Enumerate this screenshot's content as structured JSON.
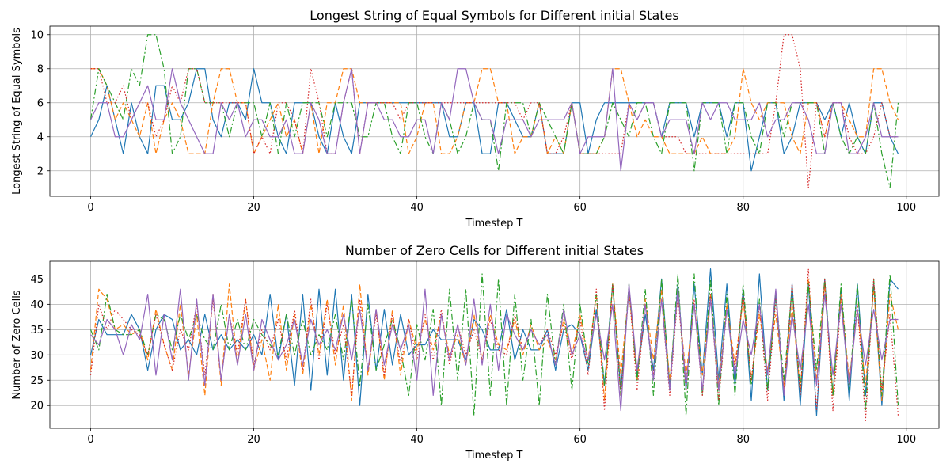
{
  "chart_data": [
    {
      "type": "line",
      "title": "Longest String of Equal Symbols for Different initial States",
      "xlabel": "Timestep T",
      "ylabel": "Longest String of Equal Symbols",
      "xlim": [
        -5,
        104
      ],
      "ylim": [
        0.5,
        10.5
      ],
      "xticks": [
        0,
        20,
        40,
        60,
        80,
        100
      ],
      "yticks": [
        2,
        4,
        6,
        8,
        10
      ],
      "grid": true,
      "series": [
        {
          "color": "#1f77b4",
          "dash": "solid",
          "values": [
            4,
            5,
            7,
            5,
            3,
            6,
            4,
            3,
            7,
            7,
            5,
            5,
            6,
            8,
            8,
            5,
            4,
            6,
            6,
            5,
            8,
            6,
            6,
            4,
            3,
            6,
            6,
            6,
            4,
            3,
            6,
            4,
            3,
            6,
            6,
            6,
            6,
            6,
            6,
            6,
            6,
            6,
            6,
            6,
            4,
            4,
            6,
            6,
            3,
            3,
            6,
            6,
            5,
            4,
            4,
            6,
            3,
            3,
            3,
            6,
            6,
            3,
            5,
            6,
            6,
            6,
            6,
            6,
            6,
            6,
            4,
            6,
            6,
            6,
            4,
            6,
            6,
            6,
            4,
            6,
            6,
            2,
            4,
            6,
            6,
            3,
            4,
            6,
            6,
            6,
            5,
            6,
            4,
            6,
            4,
            3,
            6,
            6,
            4,
            3
          ]
        },
        {
          "color": "#ff7f0e",
          "dash": "6,3",
          "values": [
            8,
            8,
            7,
            5,
            6,
            5,
            4,
            6,
            3,
            5,
            6,
            5,
            3,
            3,
            3,
            6,
            8,
            8,
            6,
            6,
            3,
            4,
            5,
            6,
            4,
            5,
            3,
            6,
            3,
            6,
            6,
            8,
            8,
            6,
            6,
            6,
            6,
            6,
            6,
            3,
            4,
            6,
            6,
            3,
            3,
            4,
            6,
            6,
            8,
            8,
            6,
            6,
            3,
            4,
            4,
            6,
            3,
            4,
            3,
            6,
            3,
            3,
            3,
            4,
            8,
            8,
            6,
            4,
            5,
            4,
            4,
            3,
            3,
            3,
            3,
            4,
            3,
            3,
            3,
            4,
            8,
            6,
            5,
            6,
            6,
            6,
            4,
            3,
            6,
            6,
            4,
            6,
            6,
            5,
            4,
            4,
            8,
            8,
            6,
            5
          ]
        },
        {
          "color": "#2ca02c",
          "dash": "8,3,2,3",
          "values": [
            5,
            8,
            7,
            6,
            5,
            8,
            7,
            10,
            10,
            8,
            3,
            4,
            8,
            8,
            6,
            6,
            6,
            4,
            6,
            6,
            6,
            4,
            6,
            3,
            6,
            4,
            6,
            6,
            6,
            4,
            6,
            6,
            6,
            4,
            4,
            6,
            6,
            4,
            3,
            6,
            6,
            4,
            3,
            6,
            5,
            3,
            4,
            6,
            5,
            5,
            2,
            6,
            6,
            6,
            4,
            6,
            5,
            4,
            3,
            6,
            3,
            3,
            3,
            4,
            6,
            5,
            4,
            6,
            6,
            4,
            3,
            6,
            6,
            6,
            2,
            6,
            6,
            6,
            3,
            6,
            6,
            4,
            3,
            6,
            6,
            4,
            6,
            6,
            6,
            6,
            3,
            6,
            4,
            3,
            4,
            3,
            6,
            3,
            1,
            6
          ]
        },
        {
          "color": "#d62728",
          "dash": "1.5,2.5",
          "values": [
            8,
            8,
            6,
            6,
            7,
            5,
            6,
            6,
            4,
            5,
            7,
            6,
            8,
            8,
            6,
            6,
            6,
            6,
            6,
            6,
            3,
            4,
            3,
            6,
            6,
            5,
            3,
            8,
            6,
            3,
            3,
            6,
            8,
            3,
            6,
            6,
            6,
            6,
            5,
            6,
            6,
            6,
            6,
            6,
            6,
            6,
            6,
            6,
            6,
            6,
            6,
            6,
            6,
            5,
            6,
            6,
            3,
            3,
            4,
            6,
            3,
            3,
            3,
            3,
            3,
            3,
            6,
            5,
            6,
            6,
            4,
            4,
            4,
            3,
            3,
            3,
            3,
            3,
            3,
            3,
            3,
            3,
            3,
            3,
            6,
            10,
            10,
            8,
            1,
            6,
            4,
            6,
            6,
            4,
            3,
            3,
            4,
            6,
            4,
            4
          ]
        },
        {
          "color": "#9467bd",
          "dash": "solid",
          "values": [
            5,
            6,
            6,
            4,
            4,
            5,
            6,
            7,
            5,
            5,
            8,
            6,
            5,
            4,
            3,
            3,
            6,
            5,
            6,
            4,
            5,
            5,
            4,
            4,
            5,
            3,
            3,
            6,
            5,
            3,
            3,
            6,
            8,
            3,
            6,
            6,
            5,
            5,
            4,
            4,
            5,
            5,
            3,
            6,
            5,
            8,
            8,
            6,
            5,
            5,
            3,
            5,
            5,
            5,
            4,
            5,
            5,
            5,
            5,
            6,
            3,
            4,
            4,
            4,
            8,
            2,
            6,
            5,
            6,
            6,
            4,
            5,
            5,
            5,
            3,
            6,
            5,
            6,
            6,
            5,
            5,
            5,
            6,
            4,
            5,
            5,
            6,
            6,
            5,
            3,
            3,
            6,
            6,
            3,
            3,
            4,
            6,
            4,
            4,
            4
          ]
        }
      ]
    },
    {
      "type": "line",
      "title": "Number of Zero Cells for Different initial States",
      "xlabel": "Timestep T",
      "ylabel": "Number of Zero Cells",
      "xlim": [
        -5,
        104
      ],
      "ylim": [
        15.5,
        48.5
      ],
      "xticks": [
        0,
        20,
        40,
        60,
        80,
        100
      ],
      "yticks": [
        20,
        25,
        30,
        35,
        40,
        45
      ],
      "grid": true,
      "series": [
        {
          "color": "#1f77b4",
          "dash": "solid",
          "values": [
            30,
            37,
            34,
            34,
            34,
            38,
            35,
            27,
            35,
            38,
            37,
            31,
            33,
            30,
            38,
            31,
            34,
            31,
            33,
            31,
            34,
            30,
            42,
            29,
            38,
            24,
            42,
            23,
            43,
            26,
            43,
            25,
            42,
            20,
            42,
            27,
            39,
            28,
            38,
            30,
            32,
            32,
            35,
            33,
            33,
            33,
            29,
            37,
            35,
            31,
            31,
            39,
            29,
            35,
            31,
            31,
            35,
            27,
            35,
            36,
            34,
            27,
            39,
            24,
            44,
            23,
            43,
            26,
            38,
            27,
            45,
            24,
            44,
            23,
            44,
            26,
            47,
            25,
            44,
            24,
            43,
            21,
            46,
            23,
            42,
            21,
            44,
            20,
            44,
            18,
            45,
            22,
            43,
            21,
            44,
            22,
            44,
            20,
            45,
            43
          ]
        },
        {
          "color": "#ff7f0e",
          "dash": "6,3",
          "values": [
            27,
            43,
            41,
            35,
            36,
            34,
            35,
            29,
            39,
            32,
            27,
            40,
            26,
            38,
            22,
            42,
            24,
            44,
            28,
            41,
            27,
            33,
            25,
            40,
            27,
            38,
            26,
            40,
            30,
            41,
            28,
            40,
            21,
            44,
            26,
            39,
            25,
            39,
            26,
            37,
            31,
            37,
            31,
            38,
            30,
            34,
            28,
            38,
            29,
            38,
            32,
            31,
            37,
            30,
            36,
            31,
            33,
            29,
            37,
            30,
            38,
            29,
            42,
            21,
            44,
            26,
            43,
            25,
            41,
            29,
            43,
            25,
            42,
            26,
            40,
            26,
            42,
            24,
            40,
            28,
            41,
            25,
            38,
            27,
            38,
            24,
            40,
            23,
            45,
            25,
            44,
            22,
            42,
            25,
            39,
            24,
            43,
            21,
            42,
            35
          ]
        },
        {
          "color": "#2ca02c",
          "dash": "8,3,2,3",
          "values": [
            35,
            31,
            42,
            35,
            34,
            34,
            35,
            30,
            38,
            37,
            31,
            38,
            33,
            38,
            33,
            31,
            40,
            31,
            37,
            31,
            37,
            34,
            32,
            30,
            38,
            30,
            37,
            30,
            34,
            31,
            38,
            29,
            41,
            24,
            40,
            27,
            32,
            37,
            31,
            22,
            36,
            29,
            39,
            20,
            43,
            25,
            43,
            18,
            46,
            22,
            45,
            20,
            42,
            25,
            37,
            20,
            42,
            28,
            40,
            23,
            40,
            28,
            42,
            24,
            44,
            22,
            44,
            25,
            43,
            22,
            45,
            23,
            46,
            18,
            46,
            22,
            45,
            20,
            42,
            22,
            44,
            24,
            41,
            23,
            42,
            25,
            43,
            23,
            44,
            27,
            45,
            22,
            44,
            23,
            44,
            19,
            45,
            22,
            46,
            20
          ]
        },
        {
          "color": "#d62728",
          "dash": "1.5,2.5",
          "values": [
            26,
            40,
            35,
            39,
            37,
            35,
            34,
            30,
            38,
            32,
            27,
            35,
            31,
            40,
            26,
            41,
            25,
            38,
            30,
            41,
            28,
            35,
            31,
            37,
            29,
            39,
            27,
            41,
            29,
            40,
            30,
            36,
            22,
            41,
            27,
            38,
            26,
            38,
            28,
            37,
            29,
            38,
            29,
            39,
            28,
            36,
            30,
            35,
            29,
            37,
            31,
            30,
            38,
            31,
            35,
            32,
            35,
            30,
            36,
            29,
            37,
            26,
            43,
            19,
            44,
            22,
            43,
            23,
            40,
            26,
            41,
            22,
            42,
            23,
            41,
            22,
            42,
            21,
            39,
            27,
            42,
            25,
            40,
            21,
            41,
            23,
            44,
            22,
            47,
            19,
            45,
            19,
            41,
            24,
            40,
            17,
            45,
            23,
            38,
            18
          ]
        },
        {
          "color": "#9467bd",
          "dash": "solid",
          "values": [
            34,
            32,
            37,
            35,
            30,
            36,
            33,
            42,
            26,
            38,
            29,
            43,
            25,
            41,
            24,
            42,
            25,
            38,
            28,
            38,
            27,
            37,
            33,
            29,
            32,
            37,
            28,
            37,
            32,
            35,
            31,
            38,
            29,
            39,
            27,
            39,
            28,
            36,
            31,
            36,
            25,
            43,
            22,
            38,
            29,
            36,
            28,
            41,
            28,
            40,
            27,
            38,
            34,
            31,
            35,
            32,
            34,
            28,
            39,
            30,
            34,
            29,
            38,
            29,
            40,
            19,
            44,
            27,
            40,
            25,
            41,
            23,
            43,
            24,
            40,
            23,
            41,
            23,
            39,
            26,
            37,
            30,
            40,
            26,
            43,
            22,
            38,
            27,
            40,
            24,
            42,
            26,
            40,
            24,
            39,
            28,
            39,
            29,
            37,
            37
          ]
        }
      ]
    }
  ]
}
